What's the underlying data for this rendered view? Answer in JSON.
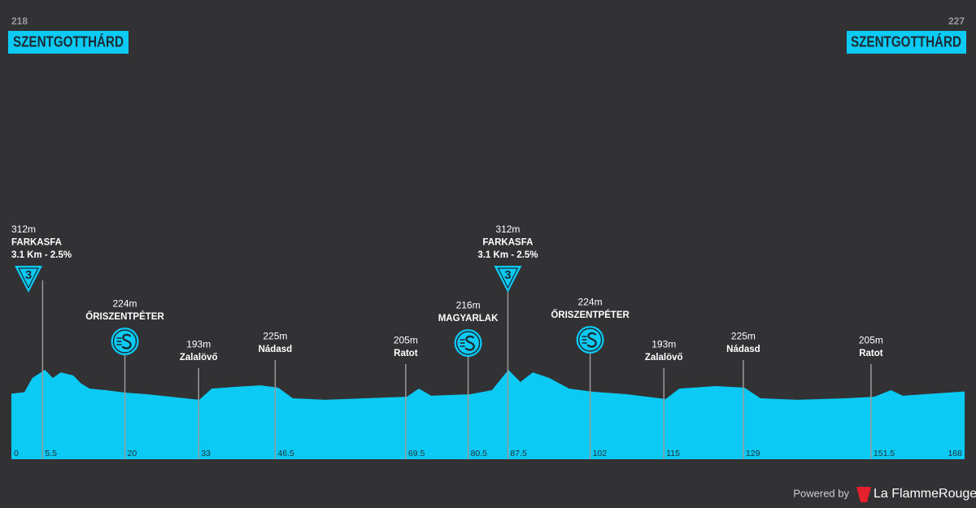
{
  "chart_data": {
    "type": "area",
    "color": "#0bcbf5",
    "x": [
      0,
      2.3,
      3.7,
      5.9,
      7.3,
      8.7,
      10.9,
      12.3,
      13.8,
      16.6,
      20.2,
      23.8,
      28.1,
      33.1,
      35.3,
      39.6,
      43.9,
      47.0,
      49.6,
      55.3,
      62.5,
      69.7,
      71.8,
      74.0,
      80.9,
      84.7,
      87.6,
      89.7,
      91.9,
      94.8,
      98.3,
      102.4,
      108.4,
      115.3,
      117.7,
      124.1,
      129.2,
      132.0,
      138.5,
      147.1,
      152.1,
      155.0,
      157.1,
      162.8,
      168
    ],
    "values": [
      218,
      224,
      280,
      312,
      280,
      302,
      290,
      258,
      238,
      232,
      222,
      216,
      206,
      194,
      238,
      245,
      251,
      242,
      200,
      194,
      200,
      206,
      238,
      210,
      216,
      232,
      312,
      264,
      302,
      280,
      238,
      226,
      216,
      197,
      238,
      248,
      242,
      200,
      194,
      200,
      206,
      232,
      210,
      219,
      227
    ],
    "xlim": [
      0,
      168
    ],
    "ylim": [
      -40,
      600
    ],
    "xticks": [
      0,
      5.5,
      20,
      33,
      46.5,
      69.5,
      80.5,
      87.5,
      102,
      115,
      129,
      151.5,
      168
    ],
    "start": {
      "elevation": "218",
      "name": "SZENTGOTTHÁRD"
    },
    "finish": {
      "elevation": "227",
      "name": "SZENTGOTTHÁRD"
    },
    "waypoints": [
      {
        "km": 5.5,
        "elevation": "312m",
        "name": "FARKASFA",
        "detail": "3.1 Km - 2.5%",
        "category": "3"
      },
      {
        "km": 20,
        "elevation": "224m",
        "name": "ŐRISZENTPÉTER",
        "sprint": true
      },
      {
        "km": 33,
        "elevation": "193m",
        "name": "Zalalövő"
      },
      {
        "km": 46.5,
        "elevation": "225m",
        "name": "Nádasd"
      },
      {
        "km": 69.5,
        "elevation": "205m",
        "name": "Ratot"
      },
      {
        "km": 80.5,
        "elevation": "216m",
        "name": "MAGYARLAK",
        "sprint": true
      },
      {
        "km": 87.5,
        "elevation": "312m",
        "name": "FARKASFA",
        "detail": "3.1 Km - 2.5%",
        "category": "3"
      },
      {
        "km": 102,
        "elevation": "224m",
        "name": "ŐRISZENTPÉTER",
        "sprint": true
      },
      {
        "km": 115,
        "elevation": "193m",
        "name": "Zalalövő"
      },
      {
        "km": 129,
        "elevation": "225m",
        "name": "Nádasd"
      },
      {
        "km": 151.5,
        "elevation": "205m",
        "name": "Ratot"
      }
    ]
  },
  "footer": {
    "powered": "Powered by",
    "brand": "La FlammeRouge"
  }
}
